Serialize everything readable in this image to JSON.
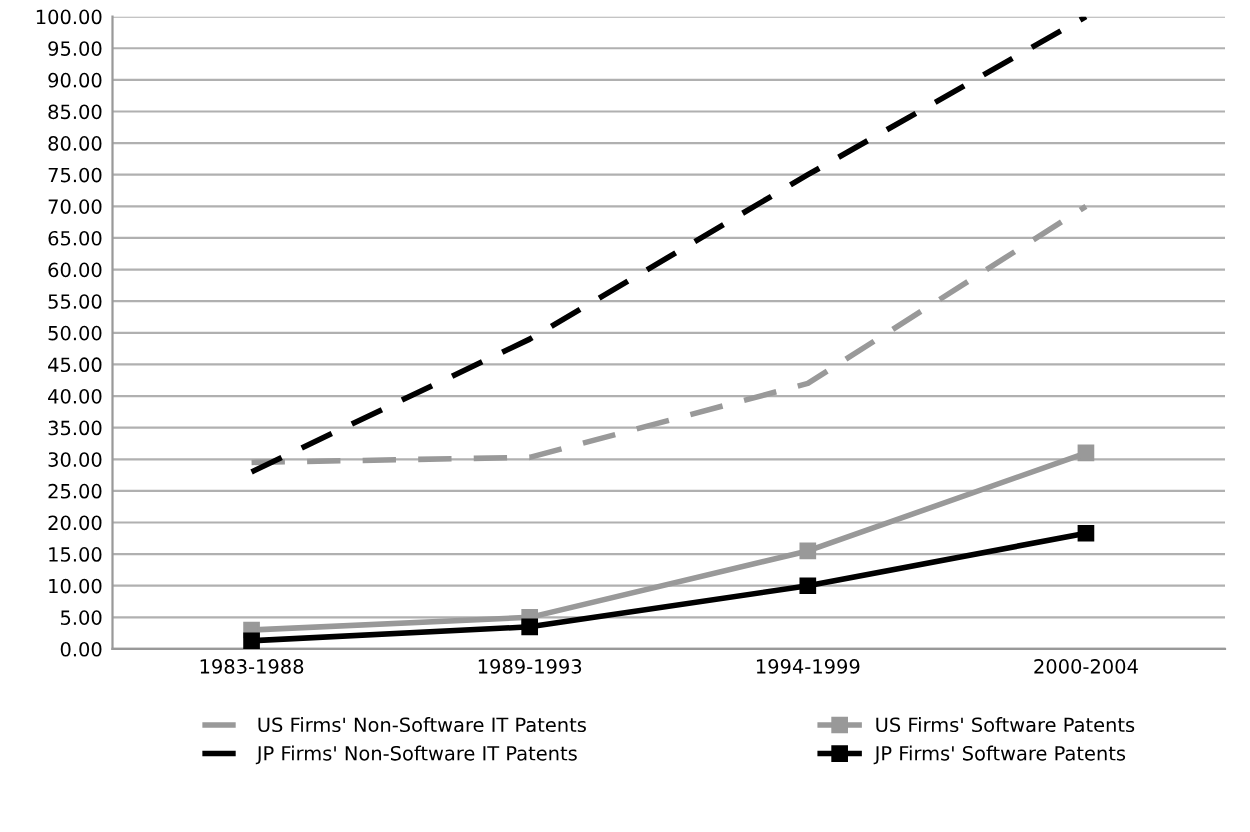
{
  "chart_data": {
    "type": "line",
    "categories": [
      "1983-1988",
      "1989-1993",
      "1994-1999",
      "2000-2004"
    ],
    "series": [
      {
        "name": "US Firms' Non-Software IT Patents",
        "color": "#999999",
        "line_style": "dashed",
        "marker": "none",
        "values": [
          29.5,
          30.3,
          42,
          70
        ]
      },
      {
        "name": "JP Firms' Non-Software IT Patents",
        "color": "#000000",
        "line_style": "dashed",
        "marker": "none",
        "values": [
          28,
          49,
          75,
          100
        ]
      },
      {
        "name": "US Firms' Software Patents",
        "color": "#999999",
        "line_style": "solid",
        "marker": "square",
        "values": [
          3,
          5,
          15.5,
          31
        ]
      },
      {
        "name": "JP Firms' Software Patents",
        "color": "#000000",
        "line_style": "solid",
        "marker": "square",
        "values": [
          1.3,
          3.5,
          10,
          18.3
        ]
      }
    ],
    "ylim": [
      0,
      100
    ],
    "yticks": [
      {
        "value": 0,
        "label": "0.00"
      },
      {
        "value": 5,
        "label": "5.00"
      },
      {
        "value": 10,
        "label": "10.00"
      },
      {
        "value": 15,
        "label": "15.00"
      },
      {
        "value": 20,
        "label": "20.00"
      },
      {
        "value": 25,
        "label": "25.00"
      },
      {
        "value": 30,
        "label": "30.00"
      },
      {
        "value": 35,
        "label": "35.00"
      },
      {
        "value": 40,
        "label": "40.00"
      },
      {
        "value": 45,
        "label": "45.00"
      },
      {
        "value": 50,
        "label": "50.00"
      },
      {
        "value": 55,
        "label": "55.00"
      },
      {
        "value": 60,
        "label": "60.00"
      },
      {
        "value": 65,
        "label": "65.00"
      },
      {
        "value": 70,
        "label": "70.00"
      },
      {
        "value": 75,
        "label": "75.00"
      },
      {
        "value": 80,
        "label": "80.00"
      },
      {
        "value": 85,
        "label": "85.00"
      },
      {
        "value": 90,
        "label": "90.00"
      },
      {
        "value": 95,
        "label": "95.00"
      },
      {
        "value": 100,
        "label": "100.00"
      }
    ],
    "grid": "y",
    "legend": "bottom"
  }
}
